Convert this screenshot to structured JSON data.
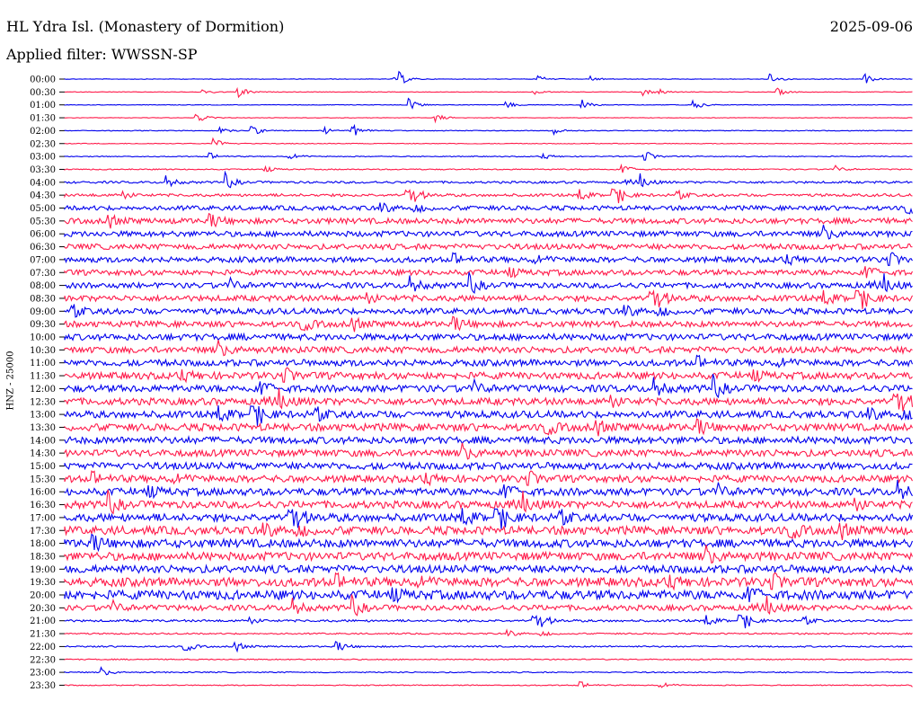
{
  "header": {
    "station": "HL Ydra Isl. (Monastery of Dormition)",
    "date": "2025-09-06",
    "filter": "Applied filter: WWSSN-SP"
  },
  "chart_data": {
    "type": "line",
    "ylabel": "HNZ - 25000",
    "colors": [
      "#0000ee",
      "#ff1a4a"
    ],
    "traces": [
      {
        "label": "00:00",
        "noise": 0.3
      },
      {
        "label": "00:30",
        "noise": 0.3
      },
      {
        "label": "01:00",
        "noise": 0.3
      },
      {
        "label": "01:30",
        "noise": 0.3
      },
      {
        "label": "02:00",
        "noise": 0.4
      },
      {
        "label": "02:30",
        "noise": 0.4
      },
      {
        "label": "03:00",
        "noise": 0.5
      },
      {
        "label": "03:30",
        "noise": 0.6
      },
      {
        "label": "04:00",
        "noise": 1.2
      },
      {
        "label": "04:30",
        "noise": 1.5
      },
      {
        "label": "05:00",
        "noise": 2.5
      },
      {
        "label": "05:30",
        "noise": 3.0
      },
      {
        "label": "06:00",
        "noise": 3.0
      },
      {
        "label": "06:30",
        "noise": 3.0
      },
      {
        "label": "07:00",
        "noise": 3.0
      },
      {
        "label": "07:30",
        "noise": 3.0
      },
      {
        "label": "08:00",
        "noise": 3.0
      },
      {
        "label": "08:30",
        "noise": 3.2
      },
      {
        "label": "09:00",
        "noise": 3.2
      },
      {
        "label": "09:30",
        "noise": 3.2
      },
      {
        "label": "10:00",
        "noise": 3.5
      },
      {
        "label": "10:30",
        "noise": 3.5
      },
      {
        "label": "11:00",
        "noise": 3.5
      },
      {
        "label": "11:30",
        "noise": 3.8
      },
      {
        "label": "12:00",
        "noise": 3.8
      },
      {
        "label": "12:30",
        "noise": 3.8
      },
      {
        "label": "13:00",
        "noise": 3.8
      },
      {
        "label": "13:30",
        "noise": 4.0
      },
      {
        "label": "14:00",
        "noise": 3.8
      },
      {
        "label": "14:30",
        "noise": 3.8
      },
      {
        "label": "15:00",
        "noise": 3.8
      },
      {
        "label": "15:30",
        "noise": 3.8
      },
      {
        "label": "16:00",
        "noise": 4.0
      },
      {
        "label": "16:30",
        "noise": 4.0
      },
      {
        "label": "17:00",
        "noise": 4.2
      },
      {
        "label": "17:30",
        "noise": 4.5
      },
      {
        "label": "18:00",
        "noise": 4.5
      },
      {
        "label": "18:30",
        "noise": 4.5
      },
      {
        "label": "19:00",
        "noise": 4.2
      },
      {
        "label": "19:30",
        "noise": 4.8
      },
      {
        "label": "20:00",
        "noise": 5.0
      },
      {
        "label": "20:30",
        "noise": 3.0
      },
      {
        "label": "21:00",
        "noise": 1.2
      },
      {
        "label": "21:30",
        "noise": 0.8
      },
      {
        "label": "22:00",
        "noise": 0.8
      },
      {
        "label": "22:30",
        "noise": 0.6
      },
      {
        "label": "23:00",
        "noise": 0.6
      },
      {
        "label": "23:30",
        "noise": 0.5
      }
    ]
  }
}
